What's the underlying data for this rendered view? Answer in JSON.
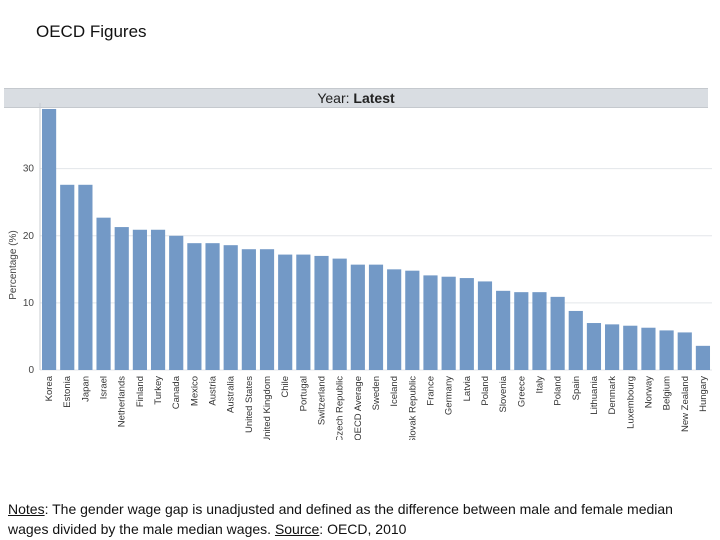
{
  "slide": {
    "title": "OECD Figures"
  },
  "header": {
    "year_label": "Year:",
    "year_value": "Latest"
  },
  "chart_data": {
    "type": "bar",
    "title": "Year: Latest",
    "xlabel": "",
    "ylabel": "Percentage (%)",
    "ylim": [
      0,
      38
    ],
    "yticks": [
      0,
      10,
      20,
      30
    ],
    "bar_color": "#7399c6",
    "categories": [
      "Korea",
      "Estonia",
      "Japan",
      "Israel",
      "Netherlands",
      "Finland",
      "Turkey",
      "Canada",
      "Mexico",
      "Austria",
      "Australia",
      "United States",
      "United Kingdom",
      "Chile",
      "Portugal",
      "Switzerland",
      "Czech Republic",
      "OECD Average",
      "Sweden",
      "Iceland",
      "Slovak Republic",
      "France",
      "Germany",
      "Latvia",
      "Poland",
      "Slovenia",
      "Greece",
      "Italy",
      "Poland",
      "Spain",
      "Lithuania",
      "Denmark",
      "Luxembourg",
      "Norway",
      "Belgium",
      "New Zealand",
      "Hungary"
    ],
    "values": [
      38.9,
      27.6,
      27.6,
      22.7,
      21.3,
      20.9,
      20.9,
      20.0,
      18.9,
      18.9,
      18.6,
      18.0,
      18.0,
      17.2,
      17.2,
      17.0,
      16.6,
      15.7,
      15.7,
      15.0,
      14.8,
      14.1,
      13.9,
      13.7,
      13.2,
      11.8,
      11.6,
      11.6,
      10.9,
      8.8,
      7.0,
      6.8,
      6.6,
      6.3,
      5.9,
      5.6,
      3.6
    ]
  },
  "notes": {
    "notes_label": "Notes",
    "notes_text": ": The gender wage gap is unadjusted and defined as the difference between male and female median wages divided by the male median wages. ",
    "source_label": "Source",
    "source_text": ": OECD, 2010"
  }
}
